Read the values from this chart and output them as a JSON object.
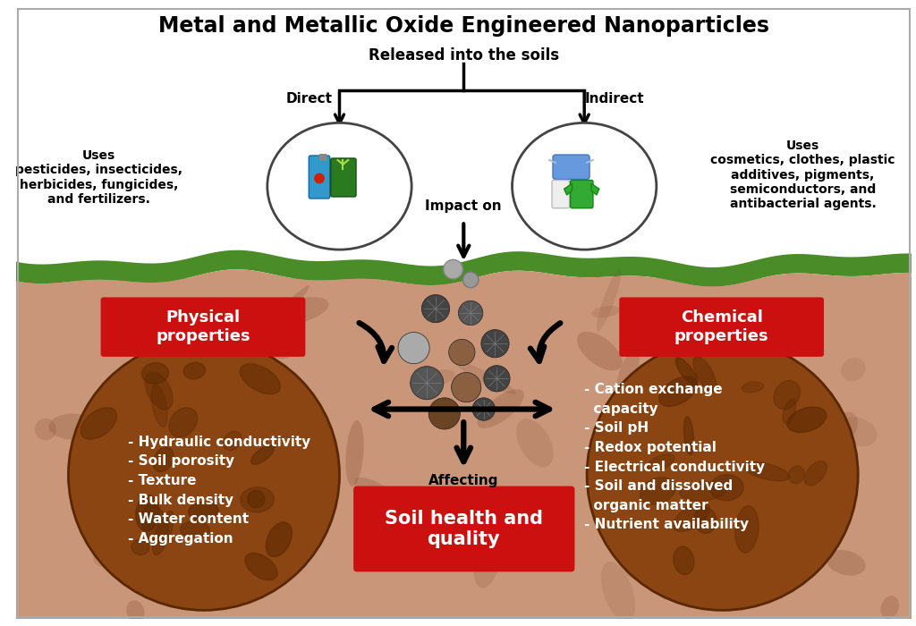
{
  "title": "Metal and Metallic Oxide Engineered Nanoparticles",
  "subtitle": "Released into the soils",
  "direct_label": "Direct",
  "indirect_label": "Indirect",
  "impact_on_label": "Impact on",
  "left_uses_text": "Uses\npesticides, insecticides,\nherbicides, fungicides,\nand fertilizers.",
  "right_uses_text": "Uses\ncosmetics, clothes, plastic\nadditives, pigments,\nsemiconductors, and\nantibacterial agents.",
  "physical_title": "Physical\nproperties",
  "chemical_title": "Chemical\nproperties",
  "physical_items": "- Hydraulic conductivity\n- Soil porosity\n- Texture\n- Bulk density\n- Water content\n- Aggregation",
  "chemical_items": "- Cation exchange\n  capacity\n- Soil pH\n- Redox potential\n- Electrical conductivity\n- Soil and dissolved\n  organic matter\n- Nutrient availability",
  "affecting_label": "Affecting",
  "soil_health_label": "Soil health and\nquality",
  "bg_color": "#ffffff",
  "soil_light_color": "#c9967a",
  "soil_med_color": "#b07050",
  "soil_dark_color": "#7a4020",
  "soil_circle_color": "#8B4513",
  "soil_circle_dark": "#5a2800",
  "grass_color": "#4a8c28",
  "red_box_color": "#cc1010",
  "title_fontsize": 17,
  "subtitle_fontsize": 12,
  "label_fontsize": 11,
  "text_fontsize": 10,
  "soil_text_fontsize": 11
}
